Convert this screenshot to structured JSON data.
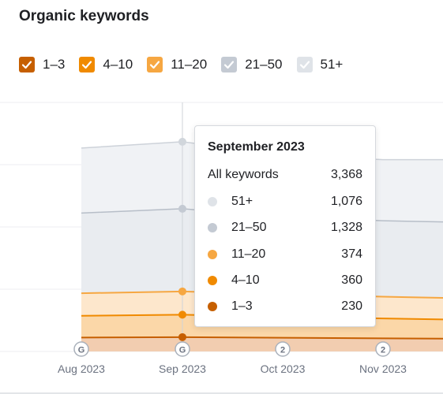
{
  "title": "Organic keywords",
  "legend": [
    {
      "label": "1–3",
      "color": "#c65f00"
    },
    {
      "label": "4–10",
      "color": "#f08a00"
    },
    {
      "label": "11–20",
      "color": "#f6a742"
    },
    {
      "label": "21–50",
      "color": "#c4cad3"
    },
    {
      "label": "51+",
      "color": "#d9dde3"
    }
  ],
  "tooltip": {
    "title": "September 2023",
    "all_label": "All keywords",
    "all_value": "3,368",
    "rows": [
      {
        "label": "51+",
        "value": "1,076",
        "color": "#dfe3e8"
      },
      {
        "label": "21–50",
        "value": "1,328",
        "color": "#c4cad3"
      },
      {
        "label": "11–20",
        "value": "374",
        "color": "#f6a742"
      },
      {
        "label": "4–10",
        "value": "360",
        "color": "#f08a00"
      },
      {
        "label": "1–3",
        "value": "230",
        "color": "#c65f00"
      }
    ]
  },
  "chart_data": {
    "type": "area",
    "categories": [
      "Aug 2023",
      "Sep 2023",
      "Oct 2023",
      "Nov 2023",
      ""
    ],
    "markers": [
      "G",
      "G",
      "2",
      "2"
    ],
    "stacked": true,
    "ylim": [
      0,
      4000
    ],
    "grid": true,
    "series": [
      {
        "name": "1–3",
        "values": [
          null,
          230,
          220,
          210,
          205
        ]
      },
      {
        "name": "4–10",
        "values": [
          null,
          360,
          340,
          320,
          310
        ]
      },
      {
        "name": "11–20",
        "values": [
          null,
          374,
          360,
          350,
          345
        ]
      },
      {
        "name": "21–50",
        "values": [
          null,
          1328,
          1240,
          1220,
          1220
        ]
      },
      {
        "name": "51+",
        "values": [
          null,
          1076,
          1000,
          980,
          1000
        ]
      }
    ],
    "colors": {
      "s1": "#c65f00",
      "s2": "#f08a00",
      "s3": "#f6a742",
      "s4": "#c4cad3",
      "s5": "#d9dde3"
    }
  }
}
